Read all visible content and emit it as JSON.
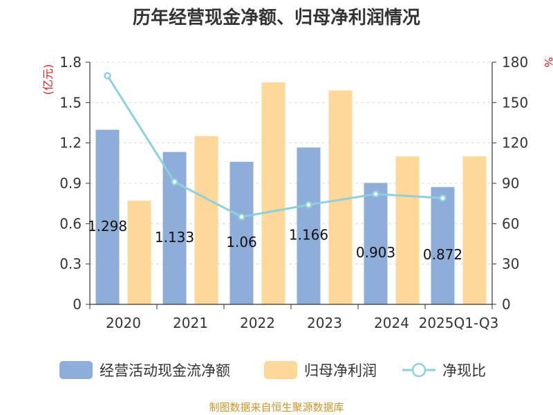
{
  "chart_data": {
    "type": "bar",
    "title": "历年经营现金净额、归母净利润情况",
    "categories": [
      "2020",
      "2021",
      "2022",
      "2023",
      "2024",
      "2025Q1-Q3"
    ],
    "series": [
      {
        "name": "经营活动现金流净额",
        "kind": "bar",
        "axis": "left",
        "color": "#8eadd9",
        "values": [
          1.298,
          1.133,
          1.06,
          1.166,
          0.903,
          0.872
        ],
        "labels": [
          "1.298",
          "1.133",
          "1.06",
          "1.166",
          "0.903",
          "0.872"
        ]
      },
      {
        "name": "归母净利润",
        "kind": "bar",
        "axis": "left",
        "color": "#fdd898",
        "values": [
          0.77,
          1.25,
          1.65,
          1.59,
          1.1,
          1.1
        ]
      },
      {
        "name": "净现比",
        "kind": "line",
        "axis": "right",
        "color": "#8dd1dc",
        "values": [
          170,
          91,
          65,
          74,
          82,
          79
        ]
      }
    ],
    "y_left": {
      "unit": "(亿元)",
      "range": [
        0,
        1.8
      ],
      "ticks": [
        "0",
        "0.3",
        "0.6",
        "0.9",
        "1.2",
        "1.5",
        "1.8"
      ]
    },
    "y_right": {
      "unit": "%",
      "range": [
        0,
        180
      ],
      "ticks": [
        "0",
        "30",
        "60",
        "90",
        "120",
        "150",
        "180"
      ]
    },
    "legend_position": "bottom",
    "grid": "horizontal"
  },
  "source": "制图数据来自恒生聚源数据库"
}
